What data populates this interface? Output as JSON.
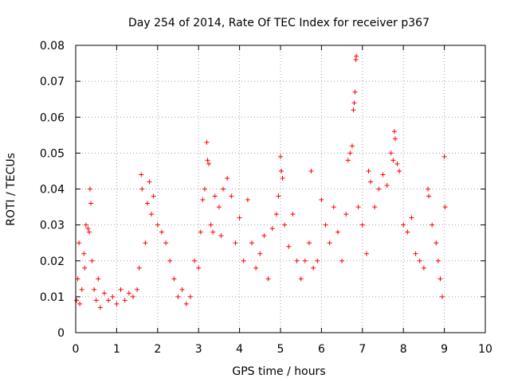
{
  "chart_data": {
    "type": "scatter",
    "title": "Day 254 of 2014, Rate Of TEC Index for receiver p367",
    "xlabel": "GPS time / hours",
    "ylabel": "ROTI / TECUs",
    "xlim": [
      0,
      10
    ],
    "ylim": [
      0,
      0.08
    ],
    "xticks": [
      0,
      1,
      2,
      3,
      4,
      5,
      6,
      7,
      8,
      9,
      10
    ],
    "xtick_labels": [
      "0",
      "1",
      "2",
      "3",
      "4",
      "5",
      "6",
      "7",
      "8",
      "9",
      "10"
    ],
    "yticks": [
      0,
      0.01,
      0.02,
      0.03,
      0.04,
      0.05,
      0.06,
      0.07,
      0.08
    ],
    "ytick_labels": [
      "0",
      "0.01",
      "0.02",
      "0.03",
      "0.04",
      "0.05",
      "0.06",
      "0.07",
      "0.08"
    ],
    "grid": true,
    "marker": "+",
    "color": "#ff0000",
    "series": [
      {
        "name": "ROTI",
        "points": [
          [
            0.02,
            0.009
          ],
          [
            0.05,
            0.015
          ],
          [
            0.08,
            0.025
          ],
          [
            0.1,
            0.008
          ],
          [
            0.15,
            0.012
          ],
          [
            0.2,
            0.022
          ],
          [
            0.22,
            0.018
          ],
          [
            0.25,
            0.03
          ],
          [
            0.3,
            0.029
          ],
          [
            0.33,
            0.028
          ],
          [
            0.35,
            0.04
          ],
          [
            0.37,
            0.036
          ],
          [
            0.4,
            0.02
          ],
          [
            0.45,
            0.012
          ],
          [
            0.5,
            0.009
          ],
          [
            0.55,
            0.015
          ],
          [
            0.6,
            0.007
          ],
          [
            0.7,
            0.011
          ],
          [
            0.8,
            0.009
          ],
          [
            0.9,
            0.01
          ],
          [
            1.0,
            0.008
          ],
          [
            1.1,
            0.012
          ],
          [
            1.2,
            0.009
          ],
          [
            1.3,
            0.011
          ],
          [
            1.4,
            0.01
          ],
          [
            1.5,
            0.012
          ],
          [
            1.55,
            0.018
          ],
          [
            1.6,
            0.044
          ],
          [
            1.62,
            0.04
          ],
          [
            1.7,
            0.025
          ],
          [
            1.75,
            0.036
          ],
          [
            1.8,
            0.042
          ],
          [
            1.85,
            0.033
          ],
          [
            1.9,
            0.038
          ],
          [
            2.0,
            0.03
          ],
          [
            2.1,
            0.028
          ],
          [
            2.2,
            0.025
          ],
          [
            2.3,
            0.02
          ],
          [
            2.4,
            0.015
          ],
          [
            2.5,
            0.01
          ],
          [
            2.6,
            0.012
          ],
          [
            2.7,
            0.008
          ],
          [
            2.8,
            0.01
          ],
          [
            2.9,
            0.02
          ],
          [
            3.0,
            0.018
          ],
          [
            3.05,
            0.028
          ],
          [
            3.1,
            0.037
          ],
          [
            3.15,
            0.04
          ],
          [
            3.2,
            0.053
          ],
          [
            3.22,
            0.048
          ],
          [
            3.25,
            0.047
          ],
          [
            3.3,
            0.03
          ],
          [
            3.35,
            0.028
          ],
          [
            3.4,
            0.038
          ],
          [
            3.5,
            0.035
          ],
          [
            3.55,
            0.027
          ],
          [
            3.6,
            0.04
          ],
          [
            3.7,
            0.043
          ],
          [
            3.8,
            0.038
          ],
          [
            3.9,
            0.025
          ],
          [
            4.0,
            0.032
          ],
          [
            4.1,
            0.02
          ],
          [
            4.2,
            0.037
          ],
          [
            4.3,
            0.025
          ],
          [
            4.4,
            0.018
          ],
          [
            4.5,
            0.022
          ],
          [
            4.6,
            0.027
          ],
          [
            4.7,
            0.015
          ],
          [
            4.8,
            0.029
          ],
          [
            4.9,
            0.033
          ],
          [
            4.95,
            0.038
          ],
          [
            5.0,
            0.049
          ],
          [
            5.02,
            0.045
          ],
          [
            5.05,
            0.043
          ],
          [
            5.1,
            0.03
          ],
          [
            5.2,
            0.024
          ],
          [
            5.3,
            0.033
          ],
          [
            5.4,
            0.02
          ],
          [
            5.5,
            0.015
          ],
          [
            5.6,
            0.02
          ],
          [
            5.7,
            0.025
          ],
          [
            5.75,
            0.045
          ],
          [
            5.8,
            0.018
          ],
          [
            5.9,
            0.02
          ],
          [
            6.0,
            0.037
          ],
          [
            6.1,
            0.03
          ],
          [
            6.2,
            0.025
          ],
          [
            6.3,
            0.035
          ],
          [
            6.4,
            0.028
          ],
          [
            6.5,
            0.02
          ],
          [
            6.6,
            0.033
          ],
          [
            6.65,
            0.048
          ],
          [
            6.7,
            0.05
          ],
          [
            6.75,
            0.052
          ],
          [
            6.78,
            0.062
          ],
          [
            6.8,
            0.064
          ],
          [
            6.82,
            0.067
          ],
          [
            6.84,
            0.076
          ],
          [
            6.85,
            0.077
          ],
          [
            6.9,
            0.035
          ],
          [
            7.0,
            0.03
          ],
          [
            7.1,
            0.022
          ],
          [
            7.15,
            0.045
          ],
          [
            7.2,
            0.042
          ],
          [
            7.3,
            0.035
          ],
          [
            7.4,
            0.04
          ],
          [
            7.5,
            0.044
          ],
          [
            7.6,
            0.041
          ],
          [
            7.7,
            0.05
          ],
          [
            7.75,
            0.048
          ],
          [
            7.78,
            0.056
          ],
          [
            7.8,
            0.054
          ],
          [
            7.85,
            0.047
          ],
          [
            7.9,
            0.045
          ],
          [
            8.0,
            0.03
          ],
          [
            8.1,
            0.028
          ],
          [
            8.2,
            0.032
          ],
          [
            8.3,
            0.022
          ],
          [
            8.4,
            0.02
          ],
          [
            8.5,
            0.018
          ],
          [
            8.6,
            0.04
          ],
          [
            8.62,
            0.038
          ],
          [
            8.7,
            0.03
          ],
          [
            8.8,
            0.025
          ],
          [
            8.85,
            0.02
          ],
          [
            8.9,
            0.015
          ],
          [
            8.95,
            0.01
          ],
          [
            9.0,
            0.049
          ],
          [
            9.02,
            0.035
          ]
        ]
      }
    ]
  }
}
